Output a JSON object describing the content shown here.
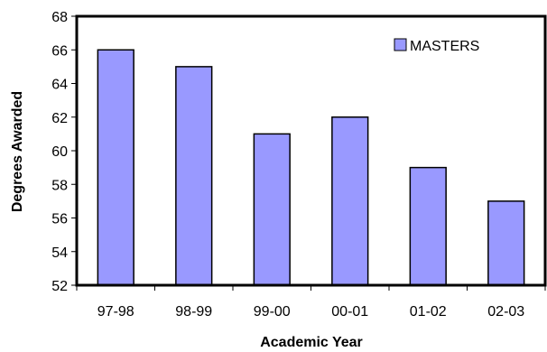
{
  "chart_data": {
    "type": "bar",
    "categories": [
      "97-98",
      "98-99",
      "99-00",
      "00-01",
      "01-02",
      "02-03"
    ],
    "series": [
      {
        "name": "MASTERS",
        "values": [
          66,
          65,
          61,
          62,
          59,
          57
        ]
      }
    ],
    "xlabel": "Academic Year",
    "ylabel": "Degrees Awarded",
    "ylim": [
      52,
      68
    ],
    "yticks": [
      "52",
      "54",
      "56",
      "58",
      "60",
      "62",
      "64",
      "66",
      "68"
    ],
    "grid": false,
    "legend": "top-right",
    "colors": {
      "bar_fill": "#9999ff",
      "bar_stroke": "#000000",
      "axis": "#000000"
    }
  }
}
